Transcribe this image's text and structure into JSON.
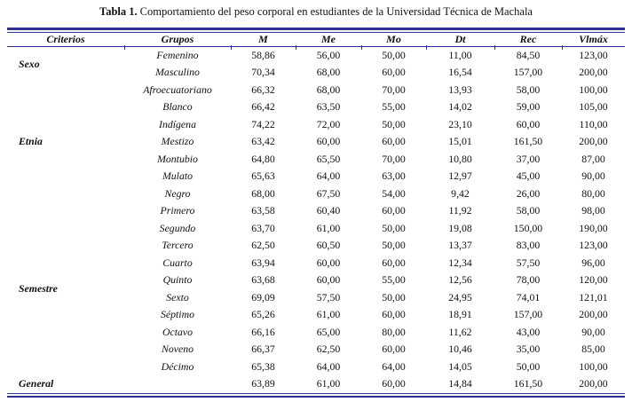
{
  "title": {
    "prefix": "Tabla 1.",
    "text": "Comportamiento del peso corporal en estudiantes de la Universidad Técnica de Machala"
  },
  "colors": {
    "rule": "#2e3192",
    "text": "#111111",
    "background": "#ffffff"
  },
  "table": {
    "headers": [
      "Criterios",
      "Grupos",
      "M",
      "Me",
      "Mo",
      "Dt",
      "Rec",
      "Vlmáx"
    ],
    "groups": [
      {
        "criterio": "Sexo",
        "rows": [
          {
            "group": "Femenino",
            "values": [
              "58,86",
              "56,00",
              "50,00",
              "11,00",
              "84,50",
              "123,00"
            ]
          },
          {
            "group": "Masculino",
            "values": [
              "70,34",
              "68,00",
              "60,00",
              "16,54",
              "157,00",
              "200,00"
            ]
          }
        ]
      },
      {
        "criterio": "Etnia",
        "rows": [
          {
            "group": "Afroecuatoriano",
            "values": [
              "66,32",
              "68,00",
              "70,00",
              "13,93",
              "58,00",
              "100,00"
            ]
          },
          {
            "group": "Blanco",
            "values": [
              "66,42",
              "63,50",
              "55,00",
              "14,02",
              "59,00",
              "105,00"
            ]
          },
          {
            "group": "Indígena",
            "values": [
              "74,22",
              "72,00",
              "50,00",
              "23,10",
              "60,00",
              "110,00"
            ]
          },
          {
            "group": "Mestizo",
            "values": [
              "63,42",
              "60,00",
              "60,00",
              "15,01",
              "161,50",
              "200,00"
            ]
          },
          {
            "group": "Montubio",
            "values": [
              "64,80",
              "65,50",
              "70,00",
              "10,80",
              "37,00",
              "87,00"
            ]
          },
          {
            "group": "Mulato",
            "values": [
              "65,63",
              "64,00",
              "63,00",
              "12,97",
              "45,00",
              "90,00"
            ]
          },
          {
            "group": "Negro",
            "values": [
              "68,00",
              "67,50",
              "54,00",
              "9,42",
              "26,00",
              "80,00"
            ]
          }
        ]
      },
      {
        "criterio": "Semestre",
        "rows": [
          {
            "group": "Primero",
            "values": [
              "63,58",
              "60,40",
              "60,00",
              "11,92",
              "58,00",
              "98,00"
            ]
          },
          {
            "group": "Segundo",
            "values": [
              "63,70",
              "61,00",
              "50,00",
              "19,08",
              "150,00",
              "190,00"
            ]
          },
          {
            "group": "Tercero",
            "values": [
              "62,50",
              "60,50",
              "50,00",
              "13,37",
              "83,00",
              "123,00"
            ]
          },
          {
            "group": "Cuarto",
            "values": [
              "63,94",
              "60,00",
              "60,00",
              "12,34",
              "57,50",
              "96,00"
            ]
          },
          {
            "group": "Quinto",
            "values": [
              "63,68",
              "60,00",
              "55,00",
              "12,56",
              "78,00",
              "120,00"
            ]
          },
          {
            "group": "Sexto",
            "values": [
              "69,09",
              "57,50",
              "50,00",
              "24,95",
              "74,01",
              "121,01"
            ]
          },
          {
            "group": "Séptimo",
            "values": [
              "65,26",
              "61,00",
              "60,00",
              "18,91",
              "157,00",
              "200,00"
            ]
          },
          {
            "group": "Octavo",
            "values": [
              "66,16",
              "65,00",
              "80,00",
              "11,62",
              "43,00",
              "90,00"
            ]
          },
          {
            "group": "Noveno",
            "values": [
              "66,37",
              "62,50",
              "60,00",
              "10,46",
              "35,00",
              "85,00"
            ]
          },
          {
            "group": "Décimo",
            "values": [
              "65,38",
              "64,00",
              "64,00",
              "14,05",
              "50,00",
              "100,00"
            ]
          }
        ]
      },
      {
        "criterio": "General",
        "rows": [
          {
            "group": "",
            "values": [
              "63,89",
              "61,00",
              "60,00",
              "14,84",
              "161,50",
              "200,00"
            ]
          }
        ]
      }
    ]
  }
}
